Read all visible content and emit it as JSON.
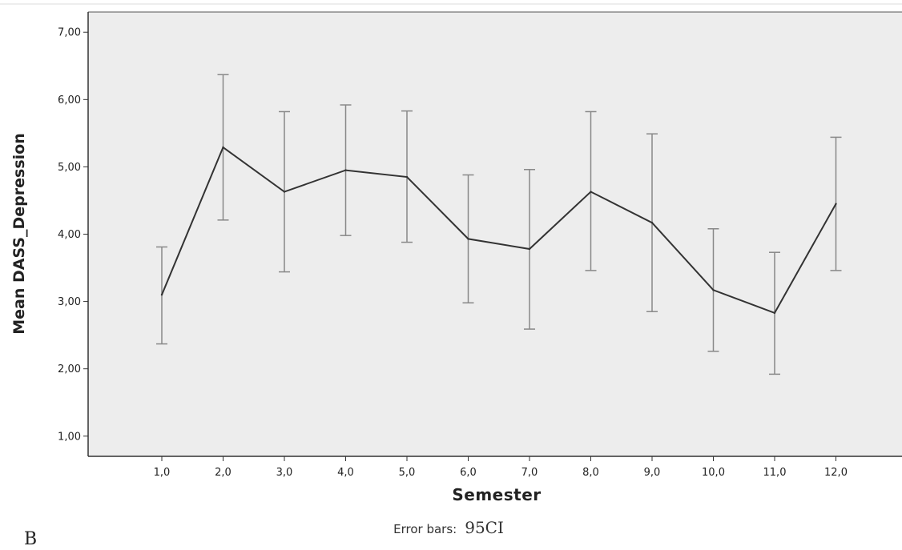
{
  "panel_label": "B",
  "chart_data": {
    "type": "line",
    "xlabel": "Semester",
    "ylabel": "Mean DASS_Depression",
    "error_bar_note_prefix": "Error bars:",
    "error_bar_note_value": "95CI",
    "categories": [
      "1,0",
      "2,0",
      "3,0",
      "4,0",
      "5,0",
      "6,0",
      "7,0",
      "8,0",
      "9,0",
      "10,0",
      "11,0",
      "12,0"
    ],
    "yticks": [
      "1,00",
      "2,00",
      "3,00",
      "4,00",
      "5,00",
      "6,00",
      "7,00"
    ],
    "ylim": [
      0.7,
      7.3
    ],
    "grid": false,
    "series": [
      {
        "values": [
          3.1,
          5.29,
          4.63,
          4.95,
          4.85,
          3.93,
          3.78,
          4.63,
          4.17,
          3.17,
          2.83,
          4.45
        ],
        "ci_lower": [
          2.37,
          4.21,
          3.44,
          3.98,
          3.88,
          2.98,
          2.59,
          3.46,
          2.85,
          2.26,
          1.92,
          3.46
        ],
        "ci_upper": [
          3.81,
          6.37,
          5.82,
          5.92,
          5.83,
          4.88,
          4.96,
          5.82,
          5.49,
          4.08,
          3.73,
          5.44
        ]
      }
    ],
    "colors": {
      "plot_background": "#ededed",
      "line": "#333333",
      "error_bar": "#888888"
    }
  }
}
